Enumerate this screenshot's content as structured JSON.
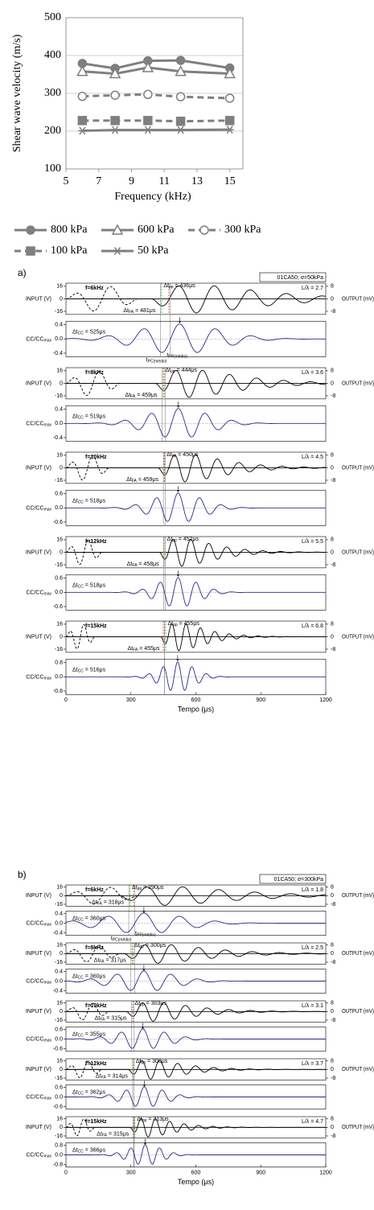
{
  "chart_data": {
    "type": "line",
    "x_label": "Frequency (kHz)",
    "y_label": "Shear wave velocity (m/s)",
    "x": [
      6,
      8,
      10,
      12,
      15
    ],
    "xlim": [
      5,
      15.8
    ],
    "xticks": [
      5,
      7,
      9,
      11,
      13,
      15
    ],
    "ylim": [
      100,
      500
    ],
    "yticks": [
      100,
      200,
      300,
      400,
      500
    ],
    "grid": true,
    "series": [
      {
        "name": "800 kPa",
        "color": "#7f7f7f",
        "marker": "circle",
        "marker_fill": true,
        "dashed": false,
        "values": [
          379,
          366,
          386,
          387,
          367
        ]
      },
      {
        "name": "600 kPa",
        "color": "#7f7f7f",
        "marker": "triangle",
        "marker_fill": false,
        "dashed": false,
        "values": [
          358,
          352,
          368,
          358,
          352
        ]
      },
      {
        "name": "300 kPa",
        "color": "#7f7f7f",
        "marker": "circle",
        "marker_fill": false,
        "dashed": true,
        "values": [
          292,
          295,
          297,
          291,
          287
        ]
      },
      {
        "name": "100 kPa",
        "color": "#7f7f7f",
        "marker": "square",
        "marker_fill": true,
        "dashed": true,
        "values": [
          228,
          228,
          228,
          226,
          228
        ]
      },
      {
        "name": "50 kPa",
        "color": "#7f7f7f",
        "marker": "star",
        "marker_fill": false,
        "dashed": false,
        "values": [
          201,
          203,
          203,
          203,
          204
        ]
      }
    ]
  },
  "panels": [
    {
      "label": "a)",
      "box": "01CA50; σ=50kPa",
      "x_label": "Tempo (μs)",
      "xlim": [
        0,
        1200
      ],
      "xticks": [
        0,
        300,
        600,
        900,
        1200
      ],
      "input_label": "INPUT (V)",
      "output_label": "OUTPUT (mV)",
      "cc_label": {
        "main": "CC/CC",
        "sub": "max"
      },
      "input_ylim": [
        -20,
        20
      ],
      "input_yticks": [
        16,
        0,
        -16
      ],
      "output_ylim": [
        -10,
        10
      ],
      "output_yticks": [
        8,
        0,
        -8
      ],
      "t_pc": {
        "pre": "t",
        "sub": "PC(médio)"
      },
      "t_pp": {
        "pre": "t",
        "sub": "PP(médio)"
      },
      "rows": [
        {
          "freq": "f=6kHz",
          "ratio": "L/λ = 2.7",
          "dt_pp": {
            "pre": "Δt",
            "sub": "pp",
            "eq": " = ",
            "value": 436,
            "unit": "μs"
          },
          "dt_fa": {
            "pre": "Δt",
            "sub": "FA",
            "eq": " = ",
            "value": 481,
            "unit": "μs"
          },
          "dt_cc": {
            "pre": "Δt",
            "sub": "CC",
            "eq": " = ",
            "value": 525,
            "unit": "μs"
          },
          "cc_ylim": [
            -0.5,
            0.5
          ],
          "cc_yticks": [
            0.4,
            {
              "value": 0,
              "label": "0.0"
            },
            -0.4
          ]
        },
        {
          "freq": "f=8kHz",
          "ratio": "L/λ = 3.6",
          "dt_pp": {
            "pre": "Δt",
            "sub": "pp",
            "eq": " = ",
            "value": 444,
            "unit": "μs"
          },
          "dt_fa": {
            "pre": "Δt",
            "sub": "FA",
            "eq": " = ",
            "value": 459,
            "unit": "μs"
          },
          "dt_cc": {
            "pre": "Δt",
            "sub": "CC",
            "eq": " = ",
            "value": 519,
            "unit": "μs"
          },
          "cc_ylim": [
            -0.5,
            0.5
          ],
          "cc_yticks": [
            0.4,
            {
              "value": 0,
              "label": "0.0"
            },
            -0.4
          ]
        },
        {
          "freq": "f=10kHz",
          "ratio": "L/λ = 4.5",
          "dt_pp": {
            "pre": "Δt",
            "sub": "pp",
            "eq": " = ",
            "value": 450,
            "unit": "μs"
          },
          "dt_fa": {
            "pre": "Δt",
            "sub": "FA",
            "eq": " = ",
            "value": 459,
            "unit": "μs"
          },
          "dt_cc": {
            "pre": "Δt",
            "sub": "CC",
            "eq": " = ",
            "value": 518,
            "unit": "μs"
          },
          "cc_ylim": [
            -0.75,
            0.75
          ],
          "cc_yticks": [
            0.6,
            {
              "value": 0,
              "label": "0.0"
            },
            -0.6
          ]
        },
        {
          "freq": "f=12kHz",
          "ratio": "L/λ = 5.5",
          "dt_pp": {
            "pre": "Δt",
            "sub": "pp",
            "eq": " = ",
            "value": 452,
            "unit": "μs"
          },
          "dt_fa": {
            "pre": "Δt",
            "sub": "FA",
            "eq": " = ",
            "value": 458,
            "unit": "μs"
          },
          "dt_cc": {
            "pre": "Δt",
            "sub": "CC",
            "eq": " = ",
            "value": 518,
            "unit": "μs"
          },
          "cc_ylim": [
            -0.75,
            0.75
          ],
          "cc_yticks": [
            0.6,
            {
              "value": 0,
              "label": "0.0"
            },
            -0.6
          ]
        },
        {
          "freq": "f=15kHz",
          "ratio": "L/λ = 6.8",
          "dt_pp": {
            "pre": "Δt",
            "sub": "pp",
            "eq": " = ",
            "value": 455,
            "unit": "μs"
          },
          "dt_fa": {
            "pre": "Δt",
            "sub": "FA",
            "eq": " = ",
            "value": 455,
            "unit": "μs"
          },
          "dt_cc": {
            "pre": "Δt",
            "sub": "CC",
            "eq": " = ",
            "value": 516,
            "unit": "μs"
          },
          "cc_ylim": [
            -1,
            1
          ],
          "cc_yticks": [
            0.8,
            {
              "value": 0,
              "label": "0.0"
            },
            -0.8
          ]
        }
      ]
    },
    {
      "label": "b)",
      "box": "01CA50; σ=300kPa",
      "x_label": "Tempo (μs)",
      "xlim": [
        0,
        1200
      ],
      "xticks": [
        0,
        300,
        600,
        900,
        1200
      ],
      "input_label": "INPUT (V)",
      "output_label": "OUTPUT (mV)",
      "cc_label": {
        "main": "CC/CC",
        "sub": "max"
      },
      "input_ylim": [
        -20,
        20
      ],
      "input_yticks": [
        16,
        0,
        -16
      ],
      "output_ylim": [
        -10,
        10
      ],
      "output_yticks": [
        8,
        0,
        -8
      ],
      "t_pc": {
        "pre": "t",
        "sub": "PC(médio)"
      },
      "t_pp": {
        "pre": "t",
        "sub": "PP(médio)"
      },
      "rows": [
        {
          "freq": "f=6kHz",
          "ratio": "L/λ = 1.8",
          "dt_pp": {
            "pre": "Δt",
            "sub": "pp",
            "eq": " = ",
            "value": 290,
            "unit": "μs"
          },
          "dt_fa": {
            "pre": "Δt",
            "sub": "FA",
            "eq": " = ",
            "value": 318,
            "unit": "μs"
          },
          "dt_cc": {
            "pre": "Δt",
            "sub": "CC",
            "eq": " = ",
            "value": 360,
            "unit": "μs"
          },
          "cc_ylim": [
            -0.5,
            0.5
          ],
          "cc_yticks": [
            0.4,
            {
              "value": 0,
              "label": "0.0"
            },
            -0.4
          ]
        },
        {
          "freq": "f=8kHz",
          "ratio": "L/λ = 2.5",
          "dt_pp": {
            "pre": "Δt",
            "sub": "pp",
            "eq": " = ",
            "value": 300,
            "unit": "μs"
          },
          "dt_fa": {
            "pre": "Δt",
            "sub": "FA",
            "eq": " = ",
            "value": 317,
            "unit": "μs"
          },
          "dt_cc": {
            "pre": "Δt",
            "sub": "CC",
            "eq": " = ",
            "value": 360,
            "unit": "μs"
          },
          "cc_ylim": [
            -0.5,
            0.5
          ],
          "cc_yticks": [
            0.4,
            {
              "value": 0,
              "label": "0.0"
            },
            -0.4
          ]
        },
        {
          "freq": "f=10kHz",
          "ratio": "L/λ = 3.1",
          "dt_pp": {
            "pre": "Δt",
            "sub": "pp",
            "eq": " = ",
            "value": 303,
            "unit": "μs"
          },
          "dt_fa": {
            "pre": "Δt",
            "sub": "FA",
            "eq": " = ",
            "value": 315,
            "unit": "μs"
          },
          "dt_cc": {
            "pre": "Δt",
            "sub": "CC",
            "eq": " = ",
            "value": 355,
            "unit": "μs"
          },
          "cc_ylim": [
            -0.75,
            0.75
          ],
          "cc_yticks": [
            0.6,
            {
              "value": 0,
              "label": "0.0"
            },
            -0.6
          ]
        },
        {
          "freq": "f=12kHz",
          "ratio": "L/λ = 3.7",
          "dt_pp": {
            "pre": "Δt",
            "sub": "pp",
            "eq": " = ",
            "value": 308,
            "unit": "μs"
          },
          "dt_fa": {
            "pre": "Δt",
            "sub": "FA",
            "eq": " = ",
            "value": 314,
            "unit": "μs"
          },
          "dt_cc": {
            "pre": "Δt",
            "sub": "CC",
            "eq": " = ",
            "value": 362,
            "unit": "μs"
          },
          "cc_ylim": [
            -0.75,
            0.75
          ],
          "cc_yticks": [
            0.6,
            {
              "value": 0,
              "label": "0.0"
            },
            -0.6
          ]
        },
        {
          "freq": "f=15kHz",
          "ratio": "L/λ = 4.7",
          "dt_pp": {
            "pre": "Δt",
            "sub": "pp",
            "eq": " = ",
            "value": 313,
            "unit": "μs"
          },
          "dt_fa": {
            "pre": "Δt",
            "sub": "FA",
            "eq": " = ",
            "value": 315,
            "unit": "μs"
          },
          "dt_cc": {
            "pre": "Δt",
            "sub": "CC",
            "eq": " = ",
            "value": 366,
            "unit": "μs"
          },
          "cc_ylim": [
            -1,
            1
          ],
          "cc_yticks": [
            0.8,
            {
              "value": 0,
              "label": "0.0"
            },
            -0.8
          ]
        }
      ]
    }
  ]
}
